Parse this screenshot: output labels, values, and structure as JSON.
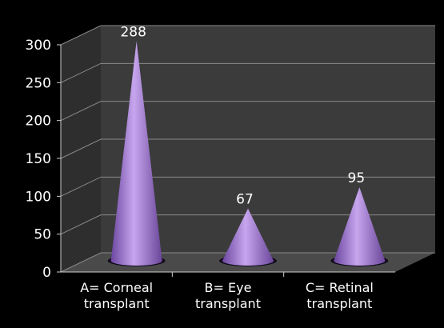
{
  "chart_data": {
    "type": "bar",
    "shape": "cone",
    "categories": [
      [
        "A= Corneal",
        "transplant"
      ],
      [
        "B= Eye",
        "transplant"
      ],
      [
        "C= Retinal",
        "transplant"
      ]
    ],
    "values": [
      288,
      67,
      95
    ],
    "data_labels": [
      "288",
      "67",
      "95"
    ],
    "ylim": [
      0,
      300
    ],
    "yticks": [
      "0",
      "50",
      "100",
      "150",
      "200",
      "250",
      "300"
    ],
    "grid": true,
    "legend": "none",
    "colors": {
      "background": "#000000",
      "wall": "#3b3b3b",
      "floor": "#4a4a4a",
      "grid": "#8a8a8a",
      "cone_light": "#c7a6ee",
      "cone_mid": "#9368c8",
      "cone_dark": "#5b3a88",
      "text": "#ffffff"
    }
  }
}
